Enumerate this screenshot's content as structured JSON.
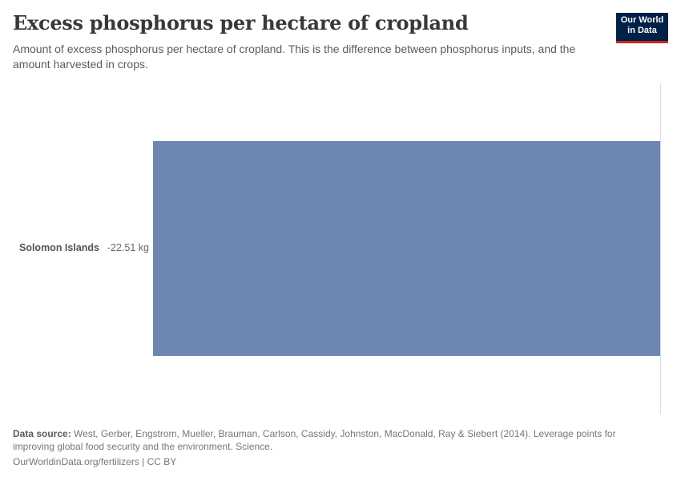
{
  "header": {
    "title": "Excess phosphorus per hectare of cropland",
    "subtitle": "Amount of excess phosphorus per hectare of cropland. This is the difference between phosphorus inputs, and the amount harvested in crops."
  },
  "logo": {
    "line1": "Our World",
    "line2": "in Data",
    "bg_color": "#002147",
    "accent_color": "#ce261e"
  },
  "chart": {
    "rows": [
      {
        "entity": "Solomon Islands",
        "value_label": "-22.51 kg",
        "bar_color": "#6d87b0"
      }
    ]
  },
  "footer": {
    "source_label": "Data source:",
    "source_text": "West, Gerber, Engstrom, Mueller, Brauman, Carlson, Cassidy, Johnston, MacDonald, Ray & Siebert (2014). Leverage points for improving global food security and the environment. Science.",
    "url": "OurWorldinData.org/fertilizers",
    "separator": "|",
    "license": "CC BY"
  },
  "chart_data": {
    "type": "bar",
    "orientation": "horizontal",
    "title": "Excess phosphorus per hectare of cropland",
    "subtitle": "Amount of excess phosphorus per hectare of cropland. This is the difference between phosphorus inputs, and the amount harvested in crops.",
    "categories": [
      "Solomon Islands"
    ],
    "values": [
      -22.51
    ],
    "unit": "kg",
    "xlabel": "",
    "ylabel": "",
    "grid": false,
    "legend": null,
    "colors": [
      "#6d87b0"
    ]
  }
}
